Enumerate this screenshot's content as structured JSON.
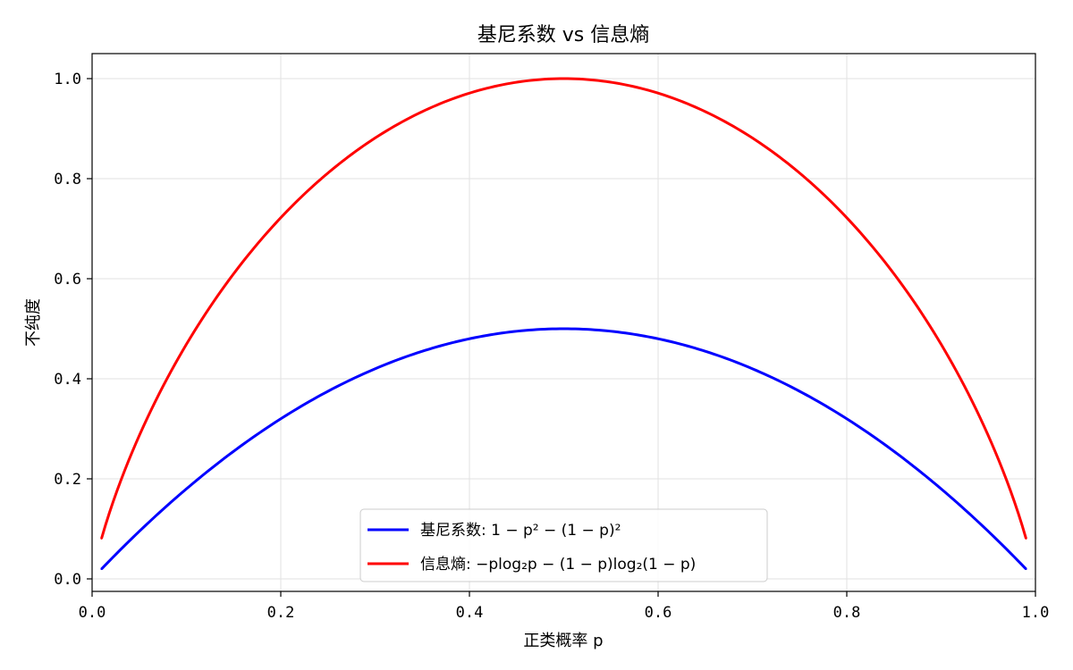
{
  "chart_data": {
    "type": "line",
    "title": "基尼系数 vs 信息熵",
    "xlabel": "正类概率 p",
    "ylabel": "不纯度",
    "xlim": [
      0.0,
      1.0
    ],
    "ylim": [
      -0.025,
      1.05
    ],
    "x_ticks": [
      "0.0",
      "0.2",
      "0.4",
      "0.6",
      "0.8",
      "1.0"
    ],
    "y_ticks": [
      "0.0",
      "0.2",
      "0.4",
      "0.6",
      "0.8",
      "1.0"
    ],
    "grid": true,
    "legend_position": "bottom-center",
    "x_range": [
      0.01,
      0.99
    ],
    "series": [
      {
        "name": "基尼系数: 1 − p² − (1 − p)²",
        "formula": "gini",
        "color": "#0000ff",
        "x": [
          0.01,
          0.1,
          0.2,
          0.3,
          0.4,
          0.5,
          0.6,
          0.7,
          0.8,
          0.9,
          0.99
        ],
        "y": [
          0.0198,
          0.18,
          0.32,
          0.42,
          0.48,
          0.5,
          0.48,
          0.42,
          0.32,
          0.18,
          0.0198
        ]
      },
      {
        "name": "信息熵: −plog₂p − (1 − p)log₂(1 − p)",
        "formula": "entropy",
        "color": "#ff0000",
        "x": [
          0.01,
          0.1,
          0.2,
          0.3,
          0.4,
          0.5,
          0.6,
          0.7,
          0.8,
          0.9,
          0.99
        ],
        "y": [
          0.0808,
          0.469,
          0.7219,
          0.8813,
          0.971,
          1.0,
          0.971,
          0.8813,
          0.7219,
          0.469,
          0.0808
        ]
      }
    ]
  }
}
